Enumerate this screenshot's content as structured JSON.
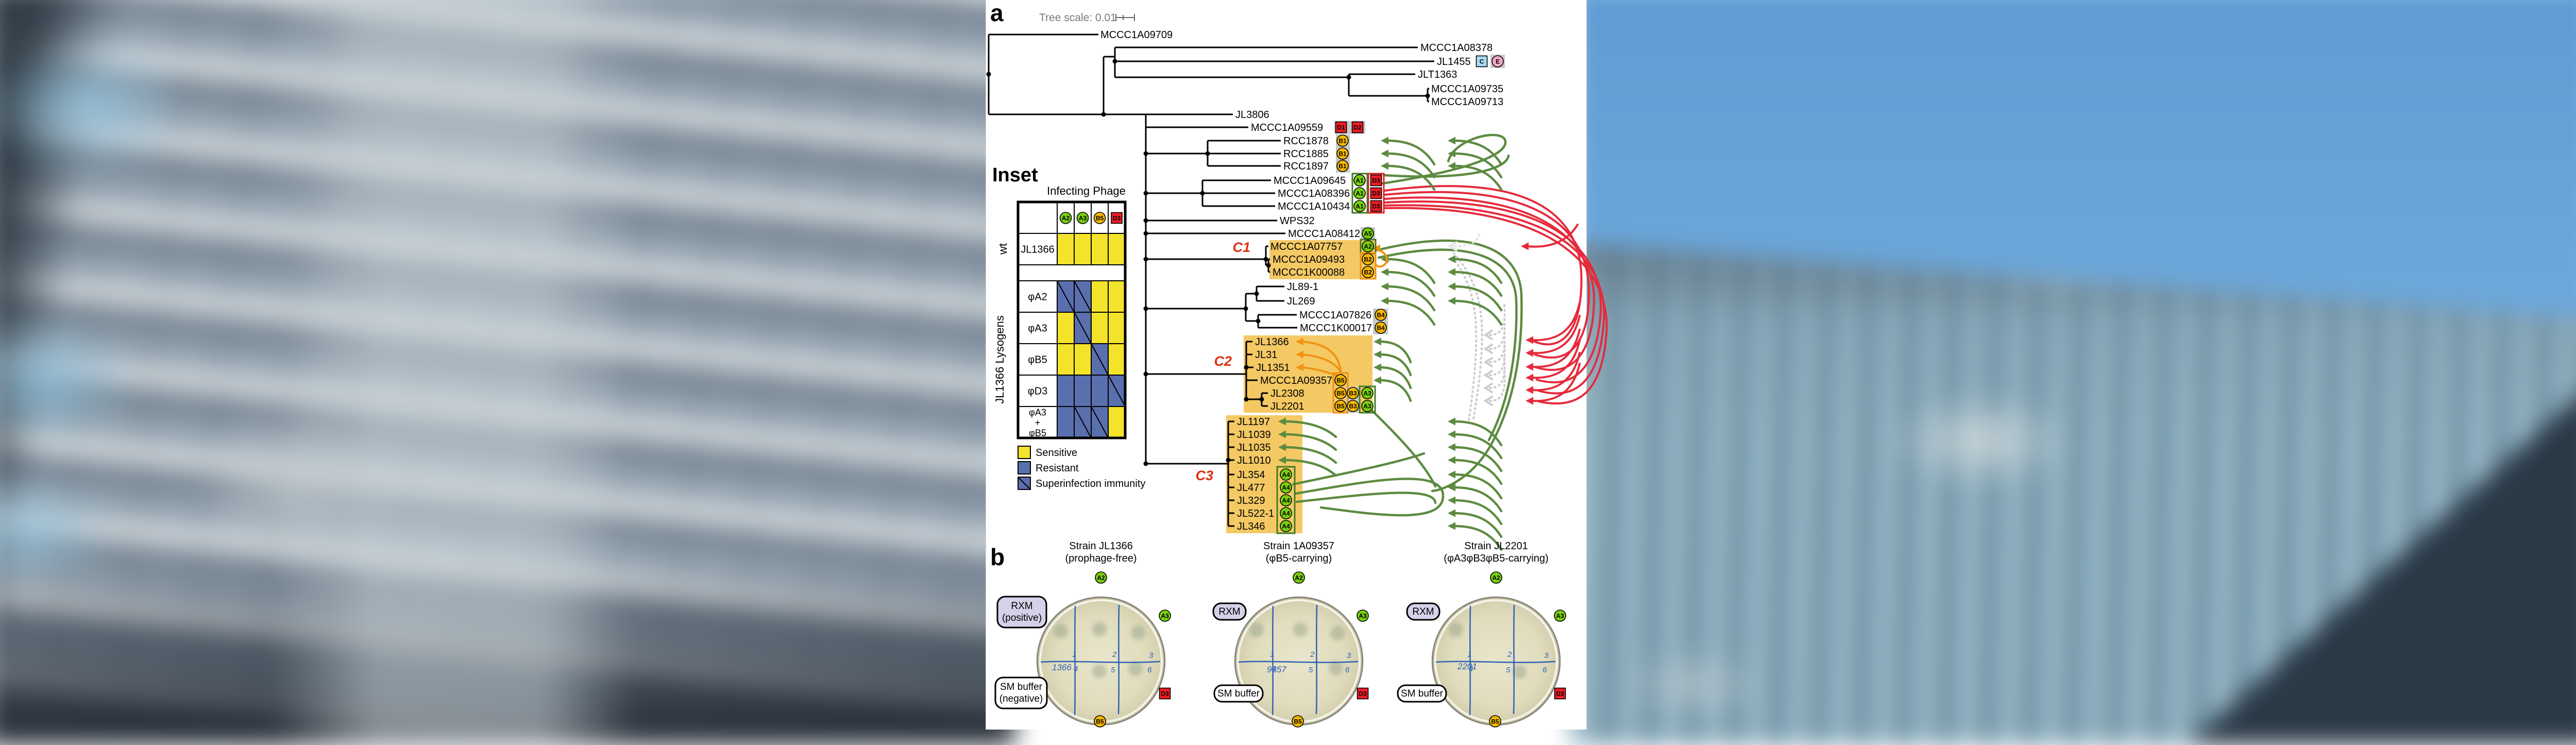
{
  "figure": {
    "panel_a_label": "a",
    "panel_b_label": "b",
    "tree_scale_label": "Tree scale: 0.01",
    "clade_labels": [
      "C1",
      "C2",
      "C3"
    ],
    "tree_tips": [
      {
        "label": "MCCC1A09709",
        "badges": []
      },
      {
        "label": "MCCC1A08378",
        "badges": []
      },
      {
        "label": "JL1455",
        "badges": [
          "C",
          "E"
        ]
      },
      {
        "label": "JLT1363",
        "badges": []
      },
      {
        "label": "MCCC1A09735",
        "badges": []
      },
      {
        "label": "MCCC1A09713",
        "badges": []
      },
      {
        "label": "JL3806",
        "badges": []
      },
      {
        "label": "MCCC1A09559",
        "badges": [
          "D1",
          "D2"
        ]
      },
      {
        "label": "RCC1878",
        "badges": [
          "B1"
        ]
      },
      {
        "label": "RCC1885",
        "badges": [
          "B1"
        ]
      },
      {
        "label": "RCC1897",
        "badges": [
          "B1"
        ]
      },
      {
        "label": "MCCC1A09645",
        "badges": [
          "A1",
          "D3"
        ]
      },
      {
        "label": "MCCC1A08396",
        "badges": [
          "A1",
          "D3"
        ]
      },
      {
        "label": "MCCC1A10434",
        "badges": [
          "A1",
          "D3"
        ]
      },
      {
        "label": "WPS32",
        "badges": []
      },
      {
        "label": "MCCC1A08412",
        "badges": [
          "A5"
        ]
      },
      {
        "label": "MCCC1A07757",
        "badges": [
          "A2"
        ]
      },
      {
        "label": "MCCC1A09493",
        "badges": [
          "B2"
        ]
      },
      {
        "label": "MCCC1K00088",
        "badges": [
          "B2"
        ]
      },
      {
        "label": "JL89-1",
        "badges": []
      },
      {
        "label": "JL269",
        "badges": []
      },
      {
        "label": "MCCC1A07826",
        "badges": [
          "B4"
        ]
      },
      {
        "label": "MCCC1K00017",
        "badges": [
          "B4"
        ]
      },
      {
        "label": "JL1366",
        "badges": []
      },
      {
        "label": "JL31",
        "badges": []
      },
      {
        "label": "JL1351",
        "badges": []
      },
      {
        "label": "MCCC1A09357",
        "badges": [
          "B5"
        ]
      },
      {
        "label": "JL2308",
        "badges": [
          "B5",
          "B3",
          "A3"
        ]
      },
      {
        "label": "JL2201",
        "badges": [
          "B5",
          "B3",
          "A3"
        ]
      },
      {
        "label": "JL1197",
        "badges": []
      },
      {
        "label": "JL1039",
        "badges": []
      },
      {
        "label": "JL1035",
        "badges": []
      },
      {
        "label": "JL1010",
        "badges": []
      },
      {
        "label": "JL354",
        "badges": [
          "A4"
        ]
      },
      {
        "label": "JL477",
        "badges": [
          "A4"
        ]
      },
      {
        "label": "JL329",
        "badges": [
          "A4"
        ]
      },
      {
        "label": "JL522-1",
        "badges": [
          "A4"
        ]
      },
      {
        "label": "JL346",
        "badges": [
          "A4"
        ]
      }
    ],
    "inset": {
      "title": "Inset",
      "col_header": "Infecting Phage",
      "row_group_wt": "wt",
      "row_group_lysogens": "JL1366 Lysogens",
      "phage_columns": [
        "A2",
        "A3",
        "B5",
        "D3"
      ],
      "rows": [
        {
          "label_lines": [
            "JL1366"
          ],
          "cells": [
            "S",
            "S",
            "S",
            "S"
          ]
        },
        {
          "label_lines": [
            "φA2"
          ],
          "cells": [
            "I",
            "I",
            "S",
            "S"
          ]
        },
        {
          "label_lines": [
            "φA3"
          ],
          "cells": [
            "S",
            "I",
            "S",
            "S"
          ]
        },
        {
          "label_lines": [
            "φB5"
          ],
          "cells": [
            "S",
            "S",
            "I",
            "S"
          ]
        },
        {
          "label_lines": [
            "φD3"
          ],
          "cells": [
            "R",
            "R",
            "R",
            "I"
          ]
        },
        {
          "label_lines": [
            "φA3",
            "+",
            "φB5"
          ],
          "cells": [
            "R",
            "I",
            "I",
            "S"
          ]
        }
      ],
      "legend": [
        {
          "swatch": "sensitive",
          "label": "Sensitive"
        },
        {
          "swatch": "resistant",
          "label": "Resistant"
        },
        {
          "swatch": "immunity",
          "label": "Superinfection immunity"
        }
      ]
    },
    "plates": [
      {
        "title_line1": "Strain JL1366",
        "title_line2": "(prophage-free)",
        "scribble": "1366",
        "rxm_lines": [
          "RXM",
          "(positive)"
        ],
        "sm_lines": [
          "SM buffer",
          "(negative)"
        ],
        "sector_numbers": [
          "1",
          "2",
          "3",
          "4",
          "5",
          "6"
        ],
        "badge_top": "A2",
        "badge_right_top": "A3",
        "badge_right_bottom": "D3",
        "badge_bottom": "B5"
      },
      {
        "title_line1": "Strain 1A09357",
        "title_line2": "(φB5-carrying)",
        "scribble": "9357",
        "rxm_lines": [
          "RXM"
        ],
        "sm_lines": [
          "SM buffer"
        ],
        "sector_numbers": [
          "1",
          "2",
          "3",
          "4",
          "5",
          "6"
        ],
        "badge_top": "A2",
        "badge_right_top": "A3",
        "badge_right_bottom": "D3",
        "badge_bottom": "B5"
      },
      {
        "title_line1": "Strain JL2201",
        "title_line2": "(φA3φB3φB5-carrying)",
        "scribble": "2201",
        "rxm_lines": [
          "RXM"
        ],
        "sm_lines": [
          "SM buffer"
        ],
        "sector_numbers": [
          "1",
          "2",
          "3",
          "4",
          "5",
          "6"
        ],
        "badge_top": "A2",
        "badge_right_top": "A3",
        "badge_right_bottom": "D3",
        "badge_bottom": "B5"
      }
    ],
    "colors": {
      "badge_green": "#77cd0f",
      "badge_amber": "#f5b800",
      "badge_red": "#ee1c25",
      "badge_blue": "#aadcf2",
      "badge_pink": "#f4a6c6",
      "badge_gray_bg": "#c9c9c9",
      "outline_green": "#3f7d23",
      "outline_orange": "#f0920f",
      "outline_red": "#e02424",
      "highlight": "#f4c964",
      "cell_yellow": "#f3e32b",
      "cell_blue": "#5a6fae",
      "arrow_green": "#5d8b41",
      "arrow_red": "#e52b3c",
      "arrow_orange": "#f09414",
      "arrow_gray": "#cccccc",
      "clade_red": "#dd2f12",
      "label_lavender": "#d6d0e8",
      "plate_fill": "#e0dbbd",
      "ink_blue": "#2e62b4",
      "tree_scale_gray": "#7a7a7a"
    }
  }
}
